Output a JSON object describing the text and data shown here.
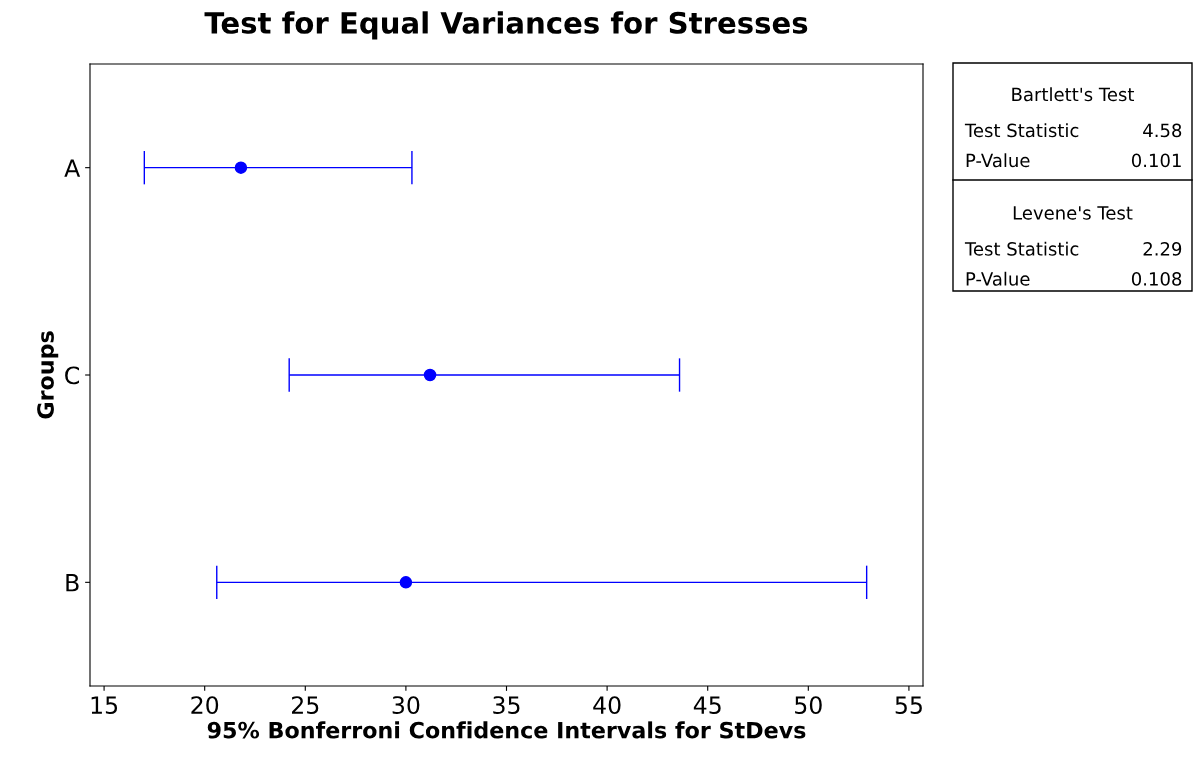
{
  "chart_data": {
    "type": "scatter",
    "title": "Test for Equal Variances for Stresses",
    "xlabel": "95% Bonferroni Confidence Intervals for StDevs",
    "ylabel": "Groups",
    "orientation": "horizontal",
    "categories": [
      "A",
      "C",
      "B"
    ],
    "series": [
      {
        "color": "#0000ff",
        "values": [
          21.8,
          31.2,
          30.0
        ],
        "errors": [
          [
            17.0,
            30.3
          ],
          [
            24.2,
            43.6
          ],
          [
            20.6,
            52.9
          ]
        ]
      }
    ],
    "marker": "circle",
    "xlim": [
      14.3,
      55.7
    ],
    "xticks": [
      15,
      20,
      25,
      30,
      35,
      40,
      45,
      50,
      55
    ],
    "grid": false,
    "legend": false,
    "annotations": [
      "Bartlett's Test",
      "Test Statistic",
      "4.58",
      "P-Value",
      "0.101",
      "Levene's Test",
      "Test Statistic",
      "2.29",
      "P-Value",
      "0.108"
    ]
  }
}
